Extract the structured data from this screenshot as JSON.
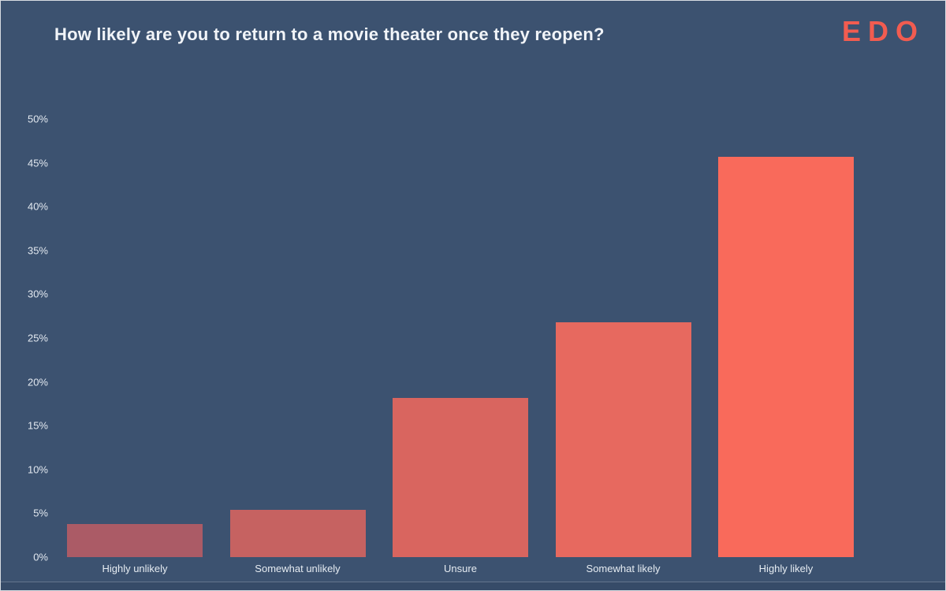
{
  "page": {
    "title": "How likely are you to return to a movie theater once they reopen?",
    "logo_text": "EDO",
    "background_color": "#3c5270",
    "title_color": "#f1f4f8",
    "logo_color": "#f25c50"
  },
  "chart_data": {
    "type": "bar",
    "title": "How likely are you to return to a movie theater once they reopen?",
    "categories": [
      "Highly unlikely",
      "Somewhat unlikely",
      "Unsure",
      "Somewhat likely",
      "Highly likely"
    ],
    "values": [
      3.8,
      5.4,
      18.2,
      26.8,
      45.7
    ],
    "bar_colors": [
      "#ab5b66",
      "#c66261",
      "#d9655f",
      "#e7695f",
      "#f96a5b"
    ],
    "xlabel": "",
    "ylabel": "",
    "ylim": [
      0,
      50
    ],
    "yticks": [
      "0%",
      "5%",
      "10%",
      "15%",
      "20%",
      "25%",
      "30%",
      "35%",
      "40%",
      "45%",
      "50%"
    ],
    "grid": false,
    "legend": false
  }
}
